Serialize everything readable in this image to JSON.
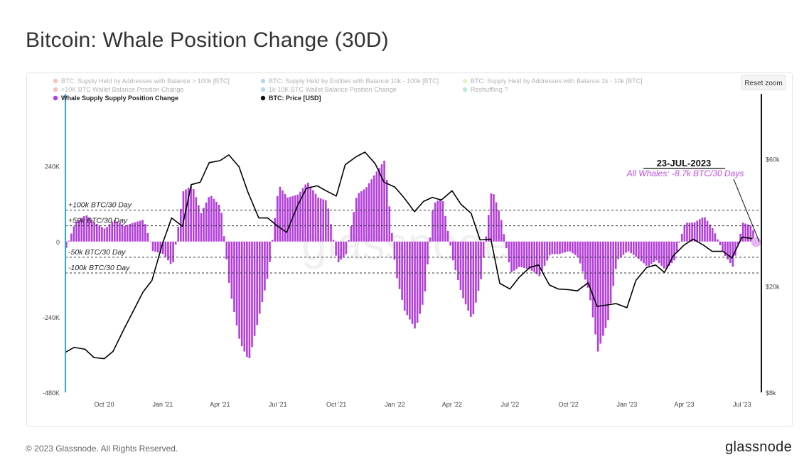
{
  "page": {
    "title": "Bitcoin: Whale Position Change (30D)",
    "footer": "© 2023 Glassnode. All Rights Reserved.",
    "brand": "glassnode",
    "watermark": "glassnode",
    "reset_zoom": "Reset zoom"
  },
  "colors": {
    "position_change": "#b23fd9",
    "price": "#000000",
    "annotation": "#c14be6",
    "left_axis_line": "#29a9f2"
  },
  "legend": [
    {
      "label": "BTC: Supply Held by Addresses with Balance > 100k [BTC]",
      "color": "#f04f3d",
      "faded": true
    },
    {
      "label": "BTC: Supply Held by Entities with Balance 10k - 100k [BTC]",
      "color": "#2d8ef2",
      "faded": true
    },
    {
      "label": "BTC: Supply Held by Addresses with Balance 1k - 10k [BTC]",
      "color": "#a3e33e",
      "faded": true
    },
    {
      "label": ">10K BTC Wallet Balance Position Change",
      "color": "#f04f3d",
      "faded": true
    },
    {
      "label": "1k-10K BTC Wallet Balance Position Change",
      "color": "#2d8ef2",
      "faded": true
    },
    {
      "label": "Reshuffling ?",
      "color": "#35c48a",
      "faded": true
    },
    {
      "label": "Whale Supply Supply Position Change",
      "color": "#b23fd9",
      "faded": false
    },
    {
      "label": "BTC: Price [USD]",
      "color": "#111111",
      "faded": false
    }
  ],
  "annotation": {
    "date": "23-JUL-2023",
    "text": "All Whales: -8.7k BTC/30 Days"
  },
  "chart_data": {
    "type": "bar",
    "x_tick_labels": [
      "Oct '20",
      "Jan '21",
      "Apr '21",
      "Jul '21",
      "Oct '21",
      "Jan '22",
      "Apr '22",
      "Jul '22",
      "Oct '22",
      "Jan '23",
      "Apr '23",
      "Jul '23"
    ],
    "left_axis": {
      "tick_labels": [
        "240K",
        "0",
        "-240K",
        "-480K"
      ],
      "ticks": [
        240000,
        0,
        -240000,
        -480000
      ],
      "range": [
        -480000,
        470000
      ]
    },
    "right_axis": {
      "tick_labels": [
        "$60k",
        "$20k",
        "$8k"
      ],
      "ticks": [
        60000,
        20000,
        8000
      ],
      "range": [
        8000,
        105000
      ],
      "scale": "log"
    },
    "reference_lines": [
      {
        "label": "+100k BTC/30 Day",
        "value": 100000
      },
      {
        "label": "+50k BTC/30 Day",
        "value": 50000
      },
      {
        "label": "-50k BTC/30 Day",
        "value": -50000
      },
      {
        "label": "-100k BTC/30 Day",
        "value": -100000
      }
    ],
    "series": [
      {
        "name": "Whale Supply Supply Position Change",
        "kind": "bar",
        "x": [
          "2020-08-01",
          "2020-08-15",
          "2020-09-01",
          "2020-09-15",
          "2020-10-01",
          "2020-10-15",
          "2020-11-01",
          "2020-11-15",
          "2020-12-01",
          "2020-12-15",
          "2021-01-01",
          "2021-01-15",
          "2021-02-01",
          "2021-02-15",
          "2021-03-01",
          "2021-03-15",
          "2021-04-01",
          "2021-04-15",
          "2021-05-01",
          "2021-05-15",
          "2021-06-01",
          "2021-06-15",
          "2021-07-01",
          "2021-07-15",
          "2021-08-01",
          "2021-08-15",
          "2021-09-01",
          "2021-09-15",
          "2021-10-01",
          "2021-10-15",
          "2021-11-01",
          "2021-11-15",
          "2021-12-01",
          "2021-12-15",
          "2022-01-01",
          "2022-01-15",
          "2022-02-01",
          "2022-02-15",
          "2022-03-01",
          "2022-03-15",
          "2022-04-01",
          "2022-04-15",
          "2022-05-01",
          "2022-05-15",
          "2022-06-01",
          "2022-06-15",
          "2022-07-01",
          "2022-07-15",
          "2022-08-01",
          "2022-08-15",
          "2022-09-01",
          "2022-09-15",
          "2022-10-01",
          "2022-10-15",
          "2022-11-01",
          "2022-11-15",
          "2022-12-01",
          "2022-12-15",
          "2023-01-01",
          "2023-01-15",
          "2023-02-01",
          "2023-02-15",
          "2023-03-01",
          "2023-03-15",
          "2023-04-01",
          "2023-04-15",
          "2023-05-01",
          "2023-05-15",
          "2023-06-01",
          "2023-06-15",
          "2023-07-01",
          "2023-07-15",
          "2023-07-23"
        ],
        "values": [
          -20000,
          60000,
          85000,
          60000,
          40000,
          70000,
          50000,
          60000,
          70000,
          -30000,
          -40000,
          -80000,
          160000,
          180000,
          90000,
          150000,
          110000,
          -150000,
          -320000,
          -380000,
          -230000,
          -100000,
          180000,
          140000,
          150000,
          190000,
          140000,
          130000,
          -70000,
          -40000,
          150000,
          170000,
          220000,
          260000,
          -100000,
          -220000,
          -280000,
          -180000,
          120000,
          140000,
          -60000,
          -170000,
          -250000,
          -120000,
          170000,
          80000,
          -100000,
          -80000,
          -90000,
          -110000,
          -40000,
          -40000,
          -30000,
          -50000,
          -160000,
          -350000,
          -250000,
          -60000,
          -30000,
          -50000,
          -80000,
          -60000,
          -90000,
          -60000,
          60000,
          60000,
          80000,
          40000,
          -40000,
          -80000,
          60000,
          50000,
          -8700
        ]
      },
      {
        "name": "BTC: Price [USD]",
        "kind": "line",
        "axis": "right",
        "x": [
          "2020-08-01",
          "2020-08-15",
          "2020-09-01",
          "2020-09-15",
          "2020-10-01",
          "2020-10-15",
          "2020-11-01",
          "2020-11-15",
          "2020-12-01",
          "2020-12-15",
          "2021-01-01",
          "2021-01-15",
          "2021-02-01",
          "2021-02-15",
          "2021-03-01",
          "2021-03-15",
          "2021-04-01",
          "2021-04-15",
          "2021-05-01",
          "2021-05-15",
          "2021-06-01",
          "2021-06-15",
          "2021-07-01",
          "2021-07-15",
          "2021-08-01",
          "2021-08-15",
          "2021-09-01",
          "2021-09-15",
          "2021-10-01",
          "2021-10-15",
          "2021-11-01",
          "2021-11-15",
          "2021-12-01",
          "2021-12-15",
          "2022-01-01",
          "2022-01-15",
          "2022-02-01",
          "2022-02-15",
          "2022-03-01",
          "2022-03-15",
          "2022-04-01",
          "2022-04-15",
          "2022-05-01",
          "2022-05-15",
          "2022-06-01",
          "2022-06-15",
          "2022-07-01",
          "2022-07-15",
          "2022-08-01",
          "2022-08-15",
          "2022-09-01",
          "2022-09-15",
          "2022-10-01",
          "2022-10-15",
          "2022-11-01",
          "2022-11-15",
          "2022-12-01",
          "2022-12-15",
          "2023-01-01",
          "2023-01-15",
          "2023-02-01",
          "2023-02-15",
          "2023-03-01",
          "2023-03-15",
          "2023-04-01",
          "2023-04-15",
          "2023-05-01",
          "2023-05-15",
          "2023-06-01",
          "2023-06-15",
          "2023-07-01",
          "2023-07-15",
          "2023-07-23"
        ],
        "values": [
          11300,
          11800,
          11600,
          10800,
          10700,
          11400,
          13800,
          16000,
          19000,
          21000,
          29000,
          36000,
          33500,
          48000,
          49000,
          58000,
          59000,
          62000,
          56000,
          45000,
          36000,
          36000,
          33500,
          31800,
          40000,
          46500,
          47500,
          45500,
          43500,
          57000,
          61000,
          63500,
          57500,
          49000,
          47000,
          43000,
          38000,
          41500,
          43000,
          42000,
          45500,
          40500,
          37500,
          29800,
          30000,
          20500,
          19500,
          21500,
          23500,
          24000,
          20200,
          19500,
          19400,
          19200,
          20600,
          16800,
          17000,
          17200,
          16600,
          21000,
          23500,
          24000,
          22500,
          26000,
          28500,
          30000,
          28500,
          27000,
          27000,
          25500,
          30500,
          30200,
          29800
        ]
      }
    ]
  }
}
